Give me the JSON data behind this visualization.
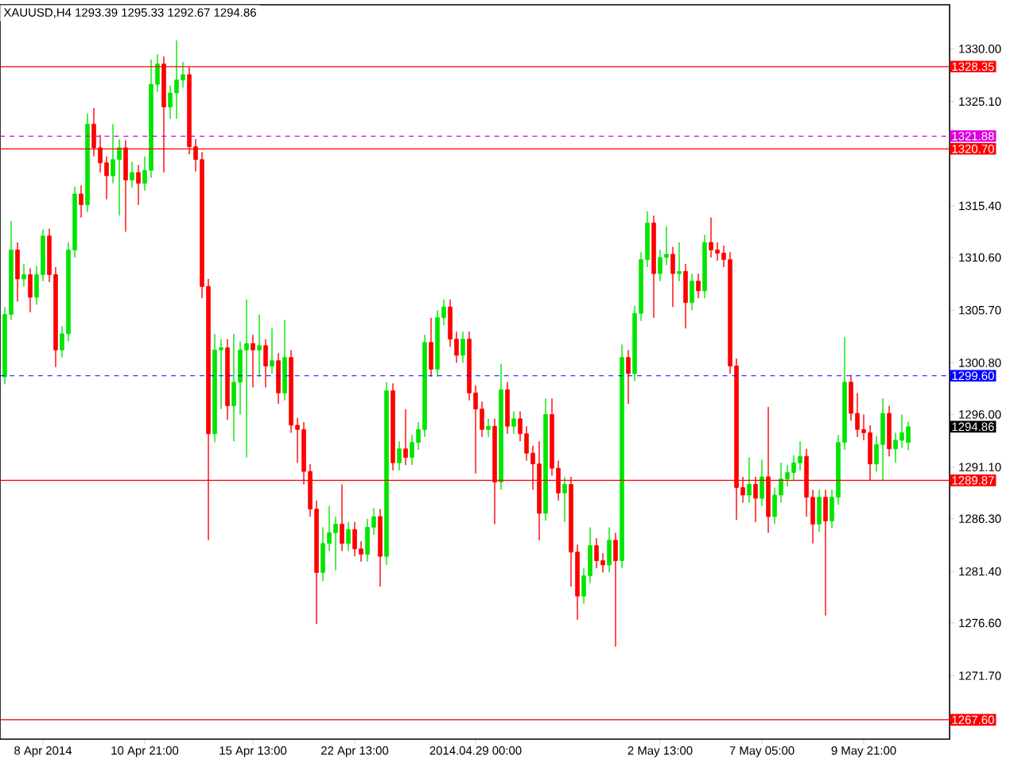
{
  "chart_data": {
    "type": "candlestick",
    "title": "XAUUSD,H4  1293.39 1295.33 1292.67 1294.86",
    "categories": [
      null,
      null,
      null,
      null,
      null,
      null,
      "8 Apr 2014",
      null,
      null,
      null,
      null,
      null,
      null,
      null,
      null,
      null,
      null,
      null,
      null,
      null,
      null,
      null,
      "10 Apr 21:00",
      null,
      null,
      null,
      null,
      null,
      null,
      null,
      null,
      null,
      null,
      null,
      null,
      null,
      null,
      null,
      null,
      "15 Apr 13:00",
      null,
      null,
      null,
      null,
      null,
      null,
      null,
      null,
      null,
      null,
      null,
      null,
      null,
      null,
      null,
      "22 Apr 13:00",
      null,
      null,
      null,
      null,
      null,
      null,
      null,
      null,
      null,
      null,
      null,
      null,
      null,
      null,
      null,
      null,
      null,
      null,
      "2014.04.29 00:00",
      null,
      null,
      null,
      null,
      null,
      null,
      null,
      null,
      null,
      null,
      null,
      null,
      null,
      null,
      null,
      null,
      null,
      null,
      null,
      null,
      null,
      null,
      null,
      null,
      null,
      null,
      null,
      null,
      "2 May 13:00",
      null,
      null,
      null,
      null,
      null,
      null,
      null,
      null,
      null,
      null,
      null,
      null,
      null,
      null,
      null,
      "7 May 05:00",
      null,
      null,
      null,
      null,
      null,
      null,
      null,
      null,
      null,
      null,
      null,
      null,
      null,
      null,
      null,
      "9 May 21:00",
      null,
      null,
      null,
      null,
      null,
      null,
      null
    ],
    "ohlc": [
      [
        1299.5,
        1306,
        1298.8,
        1305.3
      ],
      [
        1305.3,
        1314,
        1304.8,
        1311.3
      ],
      [
        1311.3,
        1312,
        1306.5,
        1308.6
      ],
      [
        1308.6,
        1310,
        1307.9,
        1309
      ],
      [
        1309,
        1309.6,
        1305.5,
        1306.9
      ],
      [
        1306.9,
        1309.8,
        1306.2,
        1309
      ],
      [
        1309,
        1313.2,
        1308.4,
        1312.6
      ],
      [
        1312.6,
        1313.3,
        1308.3,
        1309
      ],
      [
        1309,
        1309.7,
        1300.4,
        1302
      ],
      [
        1302,
        1304.2,
        1301.3,
        1303.5
      ],
      [
        1303.5,
        1312,
        1302.8,
        1311.3
      ],
      [
        1311.3,
        1317.2,
        1310.6,
        1316.5
      ],
      [
        1316.5,
        1317.3,
        1314.3,
        1315.5
      ],
      [
        1315.5,
        1324,
        1314.8,
        1323
      ],
      [
        1323,
        1324.5,
        1320,
        1320.8
      ],
      [
        1320.8,
        1322,
        1318.5,
        1319.4
      ],
      [
        1319.4,
        1320,
        1316,
        1318.2
      ],
      [
        1318.2,
        1323,
        1317.5,
        1319.7
      ],
      [
        1319.7,
        1321.6,
        1314.5,
        1320.8
      ],
      [
        1320.8,
        1321.5,
        1313,
        1317.8
      ],
      [
        1317.8,
        1319.5,
        1317.1,
        1318.5
      ],
      [
        1318.5,
        1319.2,
        1315.5,
        1317.5
      ],
      [
        1317.5,
        1320,
        1316.8,
        1318.7
      ],
      [
        1318.7,
        1329,
        1318,
        1326.7
      ],
      [
        1326.7,
        1329.5,
        1326,
        1328.6
      ],
      [
        1328.6,
        1329.3,
        1318.5,
        1324.6
      ],
      [
        1324.6,
        1326.6,
        1323.5,
        1325.9
      ],
      [
        1325.9,
        1330.8,
        1323.5,
        1327.1
      ],
      [
        1327.1,
        1328.8,
        1326.4,
        1327.6
      ],
      [
        1327.6,
        1328.3,
        1320.2,
        1320.9
      ],
      [
        1320.9,
        1321.6,
        1318.6,
        1319.7
      ],
      [
        1319.7,
        1320.4,
        1306.8,
        1307.9
      ],
      [
        1307.9,
        1308.6,
        1284.3,
        1294.2
      ],
      [
        1294.2,
        1303.5,
        1293.4,
        1302
      ],
      [
        1302,
        1303,
        1296.5,
        1302.2
      ],
      [
        1302.2,
        1303,
        1295.5,
        1296.8
      ],
      [
        1296.8,
        1303.5,
        1293.5,
        1299
      ],
      [
        1299,
        1302.8,
        1296,
        1302
      ],
      [
        1302,
        1306.7,
        1292,
        1302.6
      ],
      [
        1302.6,
        1303.4,
        1298.5,
        1302
      ],
      [
        1302,
        1305.3,
        1299.5,
        1302.4
      ],
      [
        1302.4,
        1303,
        1298.5,
        1300.5
      ],
      [
        1300.5,
        1304,
        1299.8,
        1301
      ],
      [
        1301,
        1301.7,
        1297,
        1298
      ],
      [
        1298,
        1304.8,
        1297.3,
        1301.3
      ],
      [
        1301.3,
        1302,
        1294.3,
        1295
      ],
      [
        1295,
        1295.7,
        1291.5,
        1294.6
      ],
      [
        1294.6,
        1295.3,
        1289.5,
        1290.7
      ],
      [
        1290.7,
        1291.4,
        1286.5,
        1287.2
      ],
      [
        1287.2,
        1288,
        1276.5,
        1281.3
      ],
      [
        1281.3,
        1285.5,
        1280.5,
        1284
      ],
      [
        1284,
        1287.5,
        1283.3,
        1285
      ],
      [
        1285,
        1286.5,
        1281.5,
        1285.8
      ],
      [
        1285.8,
        1289.5,
        1283.3,
        1284
      ],
      [
        1284,
        1286,
        1283.3,
        1285.3
      ],
      [
        1285.3,
        1286,
        1282.8,
        1283.5
      ],
      [
        1283.5,
        1284.2,
        1282.3,
        1283
      ],
      [
        1283,
        1286.3,
        1282.3,
        1285.5
      ],
      [
        1285.5,
        1287.3,
        1284.8,
        1286.5
      ],
      [
        1286.5,
        1287.2,
        1280,
        1282.8
      ],
      [
        1282.8,
        1299,
        1282,
        1298.2
      ],
      [
        1298.2,
        1298.9,
        1290.8,
        1291.5
      ],
      [
        1291.5,
        1293.5,
        1290.8,
        1292.8
      ],
      [
        1292.8,
        1296.5,
        1291.3,
        1292
      ],
      [
        1292,
        1294.1,
        1291.3,
        1293.4
      ],
      [
        1293.4,
        1295.3,
        1292.7,
        1294.6
      ],
      [
        1294.6,
        1303.4,
        1293.9,
        1302.7
      ],
      [
        1302.7,
        1305,
        1299.5,
        1300.2
      ],
      [
        1300.2,
        1305.7,
        1299.5,
        1305
      ],
      [
        1305,
        1306.7,
        1304.3,
        1306
      ],
      [
        1306,
        1306.7,
        1302.3,
        1303
      ],
      [
        1303,
        1303.7,
        1300.8,
        1301.5
      ],
      [
        1301.5,
        1303.7,
        1300.8,
        1303
      ],
      [
        1303,
        1303.7,
        1297.3,
        1298
      ],
      [
        1298,
        1298.7,
        1290.5,
        1296.5
      ],
      [
        1296.5,
        1297.2,
        1293.9,
        1294.6
      ],
      [
        1294.6,
        1295.6,
        1293.9,
        1294.9
      ],
      [
        1294.9,
        1295.6,
        1285.8,
        1289.7
      ],
      [
        1289.7,
        1300.7,
        1289,
        1298.3
      ],
      [
        1298.3,
        1299,
        1294.2,
        1294.9
      ],
      [
        1294.9,
        1296.3,
        1294.2,
        1295.6
      ],
      [
        1295.6,
        1296.3,
        1293.5,
        1294.2
      ],
      [
        1294.2,
        1294.9,
        1291.7,
        1292.4
      ],
      [
        1292.4,
        1293.1,
        1289,
        1291.4
      ],
      [
        1291.4,
        1293.5,
        1284.3,
        1286.8
      ],
      [
        1286.8,
        1297.5,
        1286.1,
        1296
      ],
      [
        1296,
        1297.5,
        1290.3,
        1291
      ],
      [
        1291,
        1291.7,
        1288,
        1288.7
      ],
      [
        1288.7,
        1290.2,
        1286,
        1289.5
      ],
      [
        1289.5,
        1290.2,
        1280,
        1283.2
      ],
      [
        1283.2,
        1283.9,
        1276.9,
        1279.1
      ],
      [
        1279.1,
        1281.7,
        1278.4,
        1281
      ],
      [
        1281,
        1285.5,
        1280.3,
        1283.8
      ],
      [
        1283.8,
        1284.5,
        1281.7,
        1282.4
      ],
      [
        1282.4,
        1283.1,
        1281.3,
        1282
      ],
      [
        1282,
        1285.5,
        1281.3,
        1284.3
      ],
      [
        1284.3,
        1285,
        1274.4,
        1282.4
      ],
      [
        1282.4,
        1302.5,
        1281.7,
        1301.3
      ],
      [
        1301.3,
        1302,
        1297,
        1299.8
      ],
      [
        1299.8,
        1306.1,
        1299.1,
        1305.4
      ],
      [
        1305.4,
        1311.1,
        1304.7,
        1310.4
      ],
      [
        1310.4,
        1314.9,
        1309.7,
        1313.8
      ],
      [
        1313.8,
        1314.5,
        1305,
        1309.1
      ],
      [
        1309.1,
        1311.3,
        1308.4,
        1310.6
      ],
      [
        1310.6,
        1313.5,
        1309.9,
        1310.9
      ],
      [
        1310.9,
        1311.6,
        1306,
        1309.1
      ],
      [
        1309.1,
        1312,
        1308.4,
        1309.3
      ],
      [
        1309.3,
        1310,
        1304,
        1306.4
      ],
      [
        1306.4,
        1309.1,
        1305.7,
        1308.4
      ],
      [
        1308.4,
        1309.1,
        1306.8,
        1307.5
      ],
      [
        1307.5,
        1312.7,
        1306.8,
        1312
      ],
      [
        1312,
        1314.3,
        1310.6,
        1311.3
      ],
      [
        1311.3,
        1312,
        1310.3,
        1311
      ],
      [
        1311,
        1311.7,
        1309.7,
        1310.4
      ],
      [
        1310.4,
        1311.1,
        1299.8,
        1300.5
      ],
      [
        1300.5,
        1301.2,
        1286.2,
        1289.2
      ],
      [
        1289.2,
        1290.2,
        1287.8,
        1288.5
      ],
      [
        1288.5,
        1292,
        1287.8,
        1289.5
      ],
      [
        1289.5,
        1290.2,
        1286,
        1288.2
      ],
      [
        1288.2,
        1291.8,
        1287.5,
        1290.2
      ],
      [
        1290.2,
        1296.7,
        1285,
        1286.5
      ],
      [
        1286.5,
        1289.2,
        1285.8,
        1288.5
      ],
      [
        1288.5,
        1291.5,
        1287.8,
        1290
      ],
      [
        1290,
        1291.3,
        1289.3,
        1290.6
      ],
      [
        1290.6,
        1292.2,
        1289.9,
        1291.5
      ],
      [
        1291.5,
        1293.5,
        1290.8,
        1292.1
      ],
      [
        1292.1,
        1292.8,
        1286.5,
        1288.3
      ],
      [
        1288.3,
        1289,
        1284,
        1285.8
      ],
      [
        1285.8,
        1289,
        1285.1,
        1288.3
      ],
      [
        1288.3,
        1289,
        1277.3,
        1286.1
      ],
      [
        1286.1,
        1289,
        1285.4,
        1288.3
      ],
      [
        1288.3,
        1294.1,
        1287.6,
        1293.4
      ],
      [
        1293.4,
        1303.2,
        1292.7,
        1299
      ],
      [
        1299,
        1299.7,
        1295.4,
        1296.1
      ],
      [
        1296.1,
        1298,
        1293.9,
        1294.6
      ],
      [
        1294.6,
        1296,
        1293.6,
        1294.3
      ],
      [
        1294.3,
        1295,
        1289.9,
        1291.4
      ],
      [
        1291.4,
        1294,
        1290.7,
        1293.2
      ],
      [
        1293.2,
        1297.5,
        1289.9,
        1296.1
      ],
      [
        1296.1,
        1296.8,
        1292.1,
        1292.8
      ],
      [
        1292.8,
        1294.3,
        1291.5,
        1293.6
      ],
      [
        1293.6,
        1296,
        1292.9,
        1294.3
      ],
      [
        1293.39,
        1295.33,
        1292.67,
        1294.86
      ]
    ],
    "colors": [
      "#00e600",
      "#00e600",
      "#ff0000",
      "#00e600",
      "#ff0000",
      "#00e600",
      "#00e600",
      "#ff0000",
      "#ff0000",
      "#00e600",
      "#00e600",
      "#00e600",
      "#ff0000",
      "#00e600",
      "#ff0000",
      "#ff0000",
      "#ff0000",
      "#00e600",
      "#00e600",
      "#ff0000",
      "#00e600",
      "#ff0000",
      "#00e600",
      "#00e600",
      "#00e600",
      "#ff0000",
      "#00e600",
      "#00e600",
      "#00e600",
      "#ff0000",
      "#ff0000",
      "#ff0000",
      "#ff0000",
      "#00e600",
      "#00e600",
      "#ff0000",
      "#00e600",
      "#00e600",
      "#00e600",
      "#ff0000",
      "#00e600",
      "#ff0000",
      "#00e600",
      "#ff0000",
      "#00e600",
      "#ff0000",
      "#ff0000",
      "#ff0000",
      "#ff0000",
      "#ff0000",
      "#00e600",
      "#00e600",
      "#00e600",
      "#ff0000",
      "#00e600",
      "#ff0000",
      "#ff0000",
      "#00e600",
      "#00e600",
      "#ff0000",
      "#00e600",
      "#ff0000",
      "#00e600",
      "#ff0000",
      "#00e600",
      "#00e600",
      "#00e600",
      "#ff0000",
      "#00e600",
      "#00e600",
      "#ff0000",
      "#ff0000",
      "#00e600",
      "#ff0000",
      "#ff0000",
      "#ff0000",
      "#00e600",
      "#ff0000",
      "#00e600",
      "#ff0000",
      "#00e600",
      "#ff0000",
      "#ff0000",
      "#ff0000",
      "#ff0000",
      "#00e600",
      "#ff0000",
      "#ff0000",
      "#00e600",
      "#ff0000",
      "#ff0000",
      "#00e600",
      "#00e600",
      "#ff0000",
      "#ff0000",
      "#00e600",
      "#ff0000",
      "#00e600",
      "#ff0000",
      "#00e600",
      "#00e600",
      "#00e600",
      "#ff0000",
      "#00e600",
      "#00e600",
      "#ff0000",
      "#00e600",
      "#ff0000",
      "#00e600",
      "#ff0000",
      "#00e600",
      "#ff0000",
      "#ff0000",
      "#ff0000",
      "#ff0000",
      "#ff0000",
      "#ff0000",
      "#00e600",
      "#ff0000",
      "#00e600",
      "#ff0000",
      "#00e600",
      "#00e600",
      "#00e600",
      "#00e600",
      "#00e600",
      "#ff0000",
      "#ff0000",
      "#00e600",
      "#ff0000",
      "#00e600",
      "#00e600",
      "#00e600",
      "#ff0000",
      "#ff0000",
      "#ff0000",
      "#ff0000",
      "#00e600",
      "#00e600",
      "#ff0000",
      "#00e600",
      "#00e600",
      "#00e600"
    ],
    "ylim": [
      1265.8,
      1334.1
    ],
    "yticks": [
      {
        "value": 1330,
        "label": "1330.00"
      },
      {
        "value": 1325.1,
        "label": "1325.10"
      },
      {
        "value": 1315.4,
        "label": "1315.40"
      },
      {
        "value": 1310.6,
        "label": "1310.60"
      },
      {
        "value": 1305.7,
        "label": "1305.70"
      },
      {
        "value": 1300.8,
        "label": "1300.80"
      },
      {
        "value": 1296,
        "label": "1296.00"
      },
      {
        "value": 1291.1,
        "label": "1291.10"
      },
      {
        "value": 1286.3,
        "label": "1286.30"
      },
      {
        "value": 1281.4,
        "label": "1281.40"
      },
      {
        "value": 1276.6,
        "label": "1276.60"
      },
      {
        "value": 1271.7,
        "label": "1271.70"
      }
    ],
    "ref_lines": [
      {
        "axis": "y",
        "value": 1328.35,
        "label": "1328.35",
        "color": "#ff0000",
        "line_style": "solid"
      },
      {
        "axis": "y",
        "value": 1321.88,
        "label": "1321.88",
        "color": "#dd00dd",
        "line_style": "dashed"
      },
      {
        "axis": "y",
        "value": 1320.7,
        "label": "1320.70",
        "color": "#ff0000",
        "line_style": "solid"
      },
      {
        "axis": "y",
        "value": 1299.6,
        "label": "1299.60",
        "color": "#0000ff",
        "line_style": "dashed"
      },
      {
        "axis": "y",
        "value": 1289.87,
        "label": "1289.87",
        "color": "#ff0000",
        "line_style": "solid"
      },
      {
        "axis": "y",
        "value": 1267.6,
        "label": "1267.60",
        "color": "#ff0000",
        "line_style": "solid"
      }
    ],
    "annotations": [
      "1294.86"
    ],
    "grid": false
  }
}
